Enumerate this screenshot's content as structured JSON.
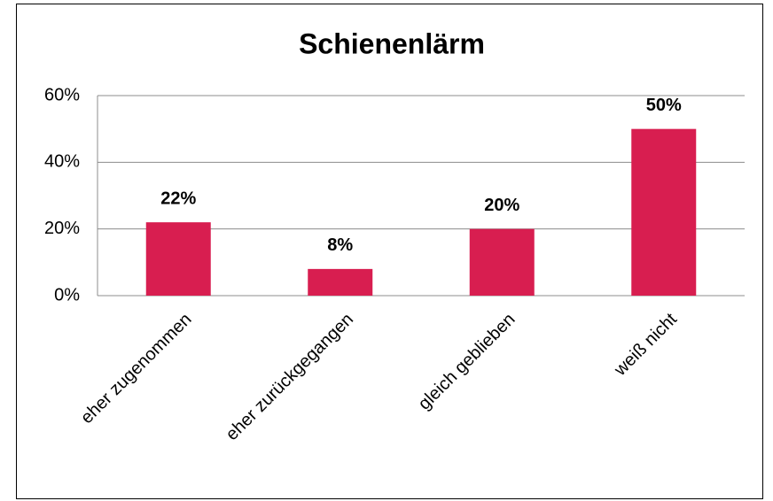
{
  "chart_data": {
    "type": "bar",
    "title": "Schienenlärm",
    "categories": [
      "eher zugenommen",
      "eher zurückgegangen",
      "gleich geblieben",
      "weiß nicht"
    ],
    "values": [
      22,
      8,
      20,
      50
    ],
    "value_labels": [
      "22%",
      "8%",
      "20%",
      "50%"
    ],
    "color": "#d81e50",
    "ylim": [
      0,
      60
    ],
    "yticks": [
      {
        "value": 0,
        "label": "0%"
      },
      {
        "value": 20,
        "label": "20%"
      },
      {
        "value": 40,
        "label": "40%"
      },
      {
        "value": 60,
        "label": "60%"
      }
    ],
    "grid": true
  }
}
